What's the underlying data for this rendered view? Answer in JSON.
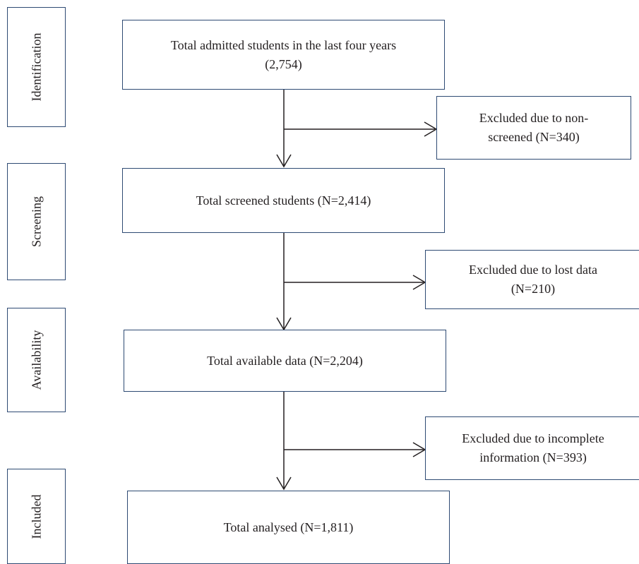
{
  "stages": [
    {
      "id": "identification",
      "label": "Identification"
    },
    {
      "id": "screening",
      "label": "Screening"
    },
    {
      "id": "availability",
      "label": "Availability"
    },
    {
      "id": "included",
      "label": "Included"
    }
  ],
  "main_boxes": [
    {
      "id": "admitted",
      "text": "Total admitted students in the last four years\n(2,754)"
    },
    {
      "id": "screened",
      "text": "Total screened students (N=2,414)"
    },
    {
      "id": "available",
      "text": "Total available data (N=2,204)"
    },
    {
      "id": "analysed",
      "text": "Total analysed (N=1,811)"
    }
  ],
  "exclusion_boxes": [
    {
      "id": "non-screened",
      "text": "Excluded due to non-\nscreened (N=340)"
    },
    {
      "id": "lost-data",
      "text": "Excluded due to lost data\n(N=210)"
    },
    {
      "id": "incomplete",
      "text": "Excluded due to incomplete\ninformation (N=393)"
    }
  ],
  "colors": {
    "box_border": "#2e4a73",
    "arrow": "#231f20"
  }
}
